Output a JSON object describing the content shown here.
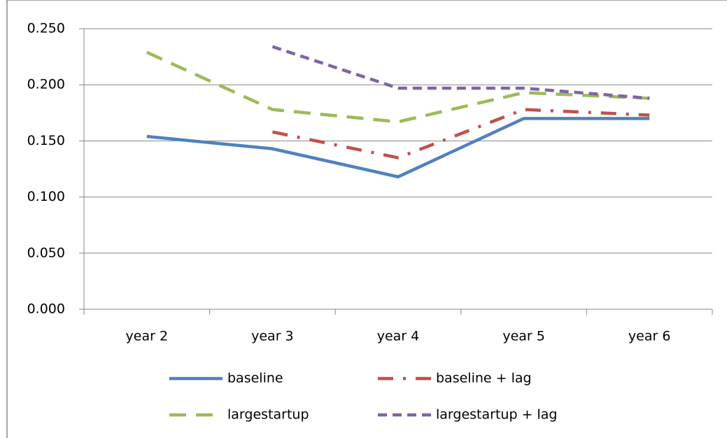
{
  "chart_data": {
    "type": "line",
    "categories": [
      "year 2",
      "year 3",
      "year 4",
      "year 5",
      "year 6"
    ],
    "series": [
      {
        "name": "baseline",
        "color": "#4f81bd",
        "dash": "solid",
        "values": [
          0.154,
          0.143,
          0.118,
          0.17,
          0.17
        ]
      },
      {
        "name": "baseline + lag",
        "color": "#c0504d",
        "dash": "dash-dot",
        "values": [
          null,
          0.158,
          0.135,
          0.178,
          0.173
        ]
      },
      {
        "name": "largestartup",
        "color": "#9bbb59",
        "dash": "long-dash",
        "values": [
          0.229,
          0.178,
          0.167,
          0.193,
          0.188
        ]
      },
      {
        "name": "largestartup + lag",
        "color": "#8064a2",
        "dash": "short-dash",
        "values": [
          null,
          0.234,
          0.197,
          0.197,
          0.188
        ]
      }
    ],
    "ylim": [
      0,
      0.25
    ],
    "yticks": [
      {
        "value": 0,
        "label": "0.000"
      },
      {
        "value": 0.05,
        "label": "0.050"
      },
      {
        "value": 0.1,
        "label": "0.100"
      },
      {
        "value": 0.15,
        "label": "0.150"
      },
      {
        "value": 0.2,
        "label": "0.200"
      },
      {
        "value": 0.25,
        "label": "0.250"
      }
    ],
    "grid": true,
    "legend": "bottom"
  }
}
